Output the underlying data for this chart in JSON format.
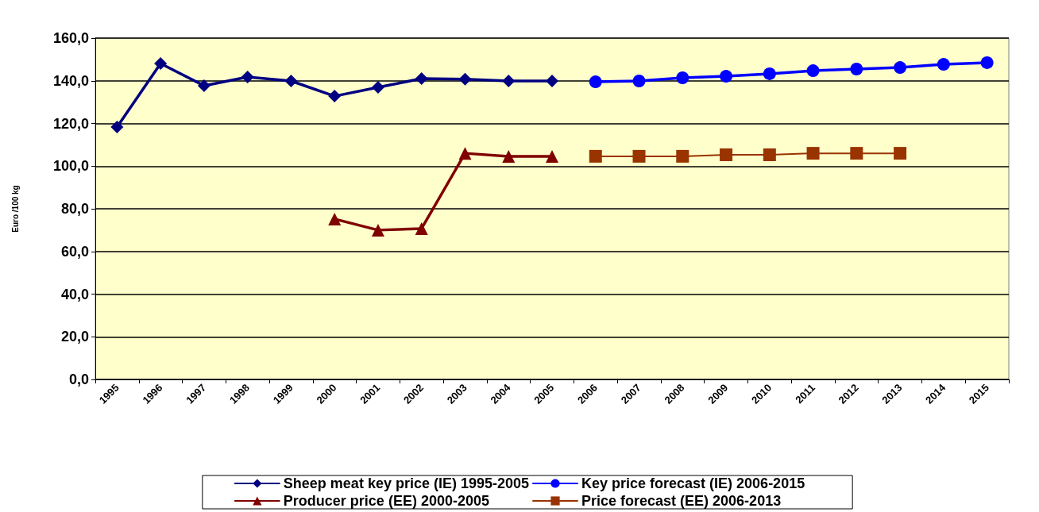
{
  "chart_data": {
    "type": "line",
    "ylabel": "Euro /100 kg",
    "categories": [
      "1995",
      "1996",
      "1997",
      "1998",
      "1999",
      "2000",
      "2001",
      "2002",
      "2003",
      "2004",
      "2005",
      "2006",
      "2007",
      "2008",
      "2009",
      "2010",
      "2011",
      "2012",
      "2013",
      "2014",
      "2015"
    ],
    "series": [
      {
        "name": "Sheep meat key price (IE) 1995-2005",
        "color": "#000080",
        "marker": "diamond",
        "values": [
          118.3,
          148.1,
          137.7,
          141.8,
          139.9,
          132.8,
          136.9,
          141.0,
          140.7,
          139.9,
          139.9,
          null,
          null,
          null,
          null,
          null,
          null,
          null,
          null,
          null,
          null
        ]
      },
      {
        "name": "Key price forecast (IE) 2006-2015",
        "color": "#0000ff",
        "marker": "circle",
        "values": [
          null,
          null,
          null,
          null,
          null,
          null,
          null,
          null,
          null,
          null,
          null,
          139.5,
          139.9,
          141.4,
          142.1,
          143.3,
          144.7,
          145.5,
          146.2,
          147.7,
          148.5
        ]
      },
      {
        "name": "Producer price (EE) 2000-2005",
        "color": "#800000",
        "marker": "triangle",
        "values": [
          null,
          null,
          null,
          null,
          null,
          75.2,
          70.0,
          70.7,
          106.0,
          104.6,
          104.6,
          null,
          null,
          null,
          null,
          null,
          null,
          null,
          null,
          null,
          null
        ]
      },
      {
        "name": "Price forecast (EE) 2006-2013",
        "color": "#993300",
        "marker": "square",
        "values": [
          null,
          null,
          null,
          null,
          null,
          null,
          null,
          null,
          null,
          null,
          null,
          104.6,
          104.6,
          104.6,
          105.3,
          105.3,
          106.0,
          106.0,
          106.0,
          null,
          null
        ]
      }
    ],
    "ylim": [
      0,
      160
    ],
    "yticks": [
      {
        "value": 0,
        "label": "0,0"
      },
      {
        "value": 20,
        "label": "20,0"
      },
      {
        "value": 40,
        "label": "40,0"
      },
      {
        "value": 60,
        "label": "60,0"
      },
      {
        "value": 80,
        "label": "80,0"
      },
      {
        "value": 100,
        "label": "100,0"
      },
      {
        "value": 120,
        "label": "120,0"
      },
      {
        "value": 140,
        "label": "140,0"
      },
      {
        "value": 160,
        "label": "160,0"
      }
    ],
    "grid": "y",
    "legend": "bottom",
    "line_style": "solid"
  }
}
